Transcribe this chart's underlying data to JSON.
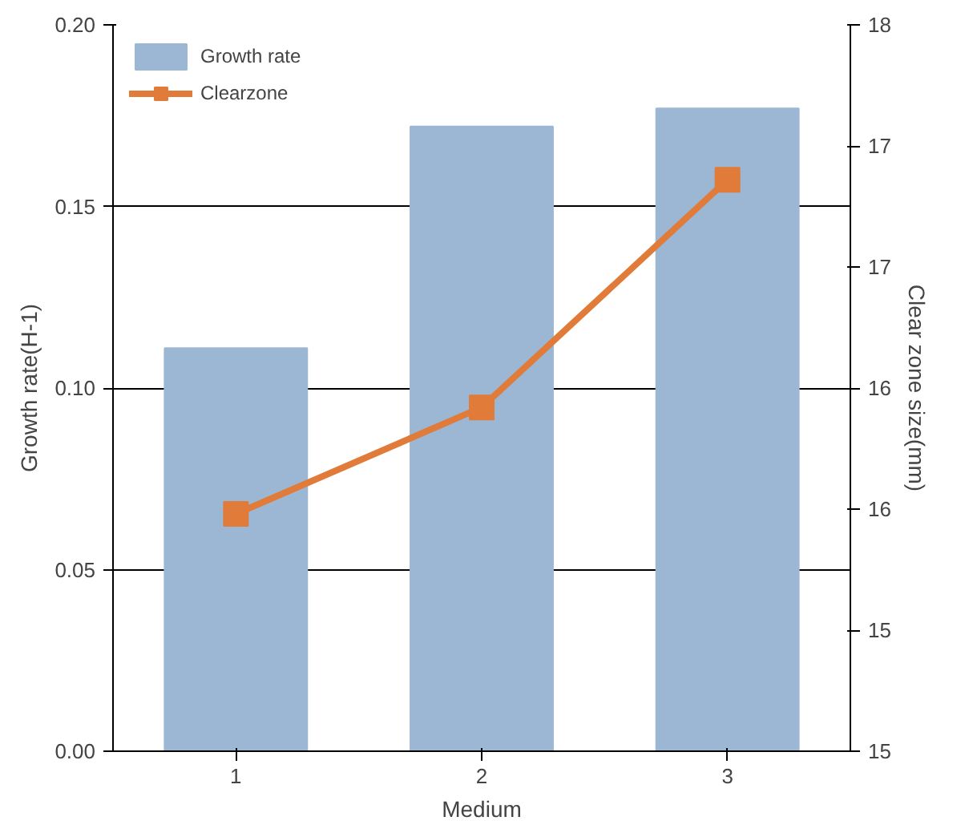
{
  "chart_data": {
    "type": "bar",
    "xlabel": "Medium",
    "ylabel": "Growth rate(H-1)",
    "y2label": "Clear zone size(mm)",
    "categories": [
      "1",
      "2",
      "3"
    ],
    "series": [
      {
        "name": "Growth rate",
        "color": "#9bb7d4",
        "values": [
          0.111,
          0.172,
          0.177
        ]
      },
      {
        "name": "Clearzone",
        "type": "line",
        "axis": "y2",
        "color": "#e07b39",
        "marker": "square",
        "values": [
          15.98,
          16.42,
          17.36
        ]
      }
    ],
    "ylim": [
      0,
      0.2
    ],
    "yticks": [
      {
        "value": 0,
        "label": "0.00"
      },
      {
        "value": 0.05,
        "label": "0.05"
      },
      {
        "value": 0.1,
        "label": "0.10"
      },
      {
        "value": 0.15,
        "label": "0.15"
      },
      {
        "value": 0.2,
        "label": "0.20"
      }
    ],
    "y2lim": [
      15,
      18
    ],
    "y2ticks": [
      15,
      {
        "value": 15.5,
        "label": "15"
      },
      16,
      {
        "value": 16.5,
        "label": "16"
      },
      17,
      {
        "value": 17.5,
        "label": "17"
      },
      18
    ],
    "grid": "y",
    "legend": "top left"
  }
}
